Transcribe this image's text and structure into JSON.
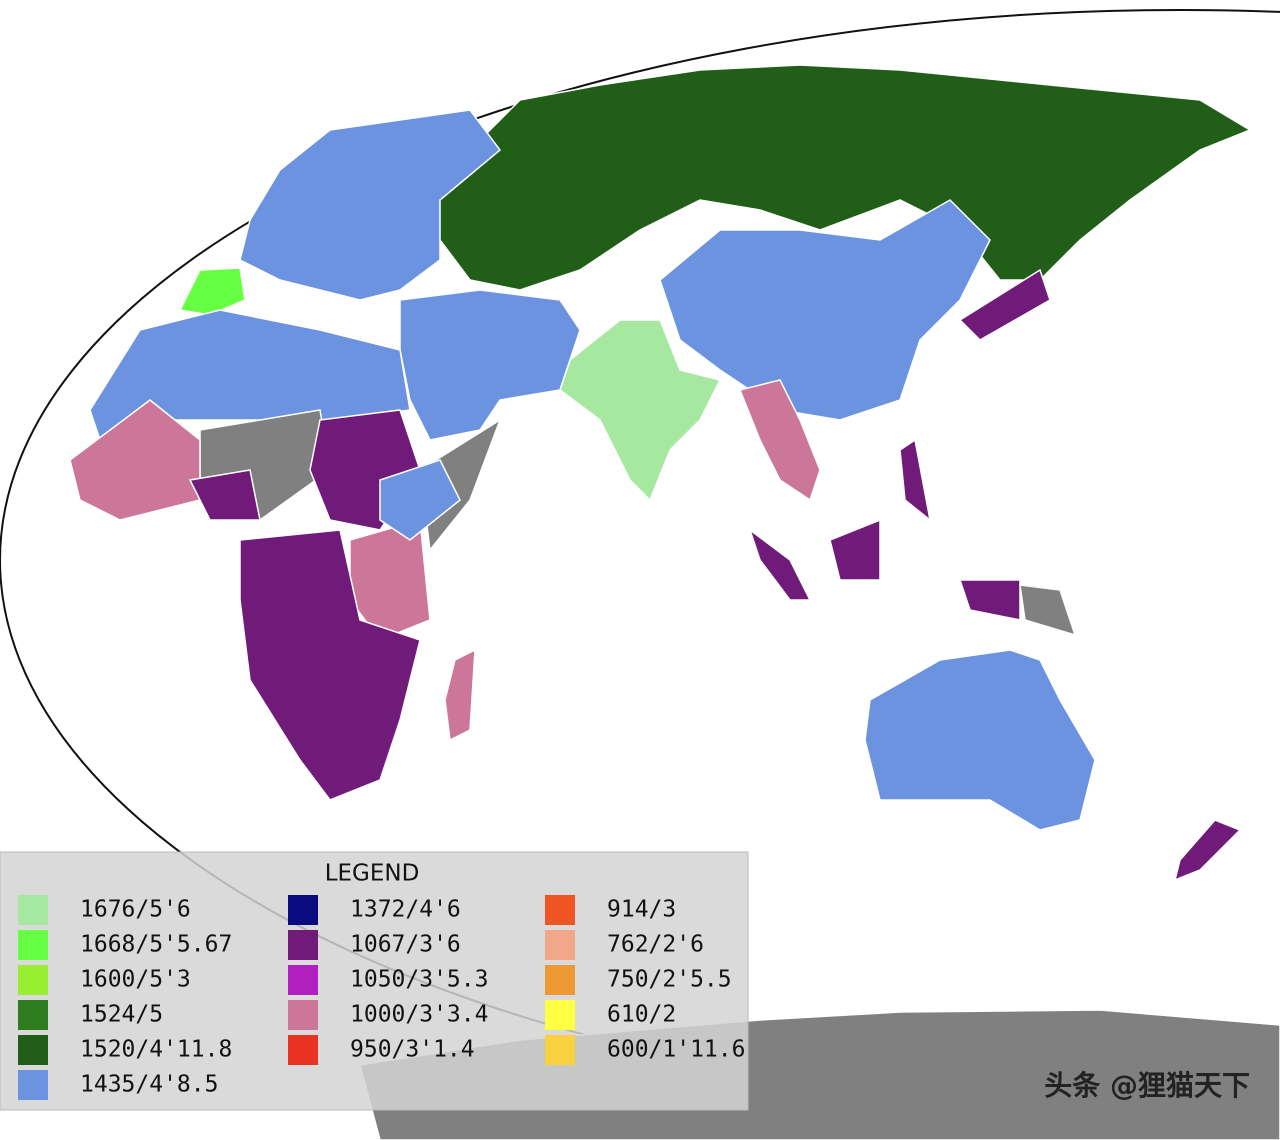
{
  "legend": {
    "title": "LEGEND",
    "columns": [
      [
        {
          "label": "1676/5'6",
          "color": "#a6e8a0"
        },
        {
          "label": "1668/5'5.67",
          "color": "#66ff44"
        },
        {
          "label": "1600/5'3",
          "color": "#99ee33"
        },
        {
          "label": "1524/5",
          "color": "#2e7d1e"
        },
        {
          "label": "1520/4'11.8",
          "color": "#215f18"
        },
        {
          "label": "1435/4'8.5",
          "color": "#6b93e0"
        }
      ],
      [
        {
          "label": "1372/4'6",
          "color": "#0b0b80"
        },
        {
          "label": "1067/3'6",
          "color": "#701a7a"
        },
        {
          "label": "1050/3'5.3",
          "color": "#b21fbf"
        },
        {
          "label": "1000/3'3.4",
          "color": "#cc7799"
        },
        {
          "label": "950/3'1.4",
          "color": "#e83322"
        }
      ],
      [
        {
          "label": "914/3",
          "color": "#ee5522"
        },
        {
          "label": "762/2'6",
          "color": "#f0a888"
        },
        {
          "label": "750/2'5.5",
          "color": "#ee9933"
        },
        {
          "label": "610/2",
          "color": "#ffff44"
        },
        {
          "label": "600/1'11.6",
          "color": "#f8d040"
        }
      ]
    ]
  },
  "watermark": "头条 @狸猫天下"
}
